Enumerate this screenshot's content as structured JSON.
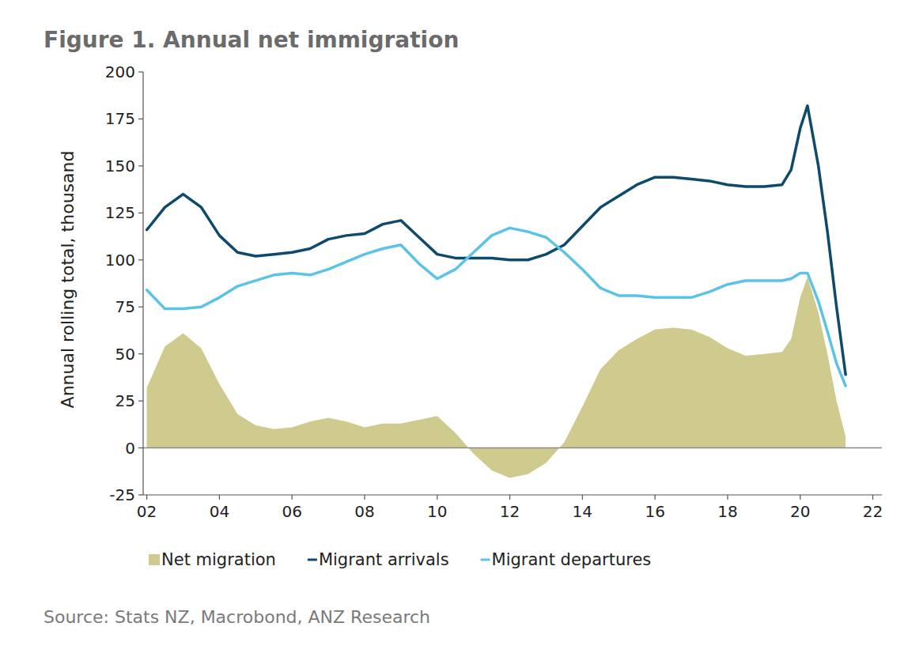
{
  "chart_data": {
    "type": "line",
    "title": "Figure 1. Annual net immigration",
    "y_label": "Annual rolling total, thousand",
    "source": "Source: Stats NZ, Macrobond, ANZ Research",
    "x": [
      2002,
      2002.5,
      2003,
      2003.5,
      2004,
      2004.5,
      2005,
      2005.5,
      2006,
      2006.5,
      2007,
      2007.5,
      2008,
      2008.5,
      2009,
      2009.5,
      2010,
      2010.5,
      2011,
      2011.5,
      2012,
      2012.5,
      2013,
      2013.5,
      2014,
      2014.5,
      2015,
      2015.5,
      2016,
      2016.5,
      2017,
      2017.5,
      2018,
      2018.5,
      2019,
      2019.5,
      2019.75,
      2020,
      2020.2,
      2020.5,
      2020.75,
      2021,
      2021.25
    ],
    "series": [
      {
        "name": "Net migration",
        "type": "area",
        "color": "#cfca8d",
        "values": [
          32,
          54,
          61,
          53,
          34,
          18,
          12,
          10,
          11,
          14,
          16,
          14,
          11,
          13,
          13,
          15,
          17,
          8,
          -3,
          -12,
          -16,
          -14,
          -8,
          3,
          22,
          42,
          52,
          58,
          63,
          64,
          63,
          59,
          53,
          49,
          50,
          51,
          58,
          80,
          91,
          72,
          50,
          25,
          6
        ]
      },
      {
        "name": "Migrant arrivals",
        "type": "line",
        "color": "#0d4a6b",
        "values": [
          116,
          128,
          135,
          128,
          113,
          104,
          102,
          103,
          104,
          106,
          111,
          113,
          114,
          119,
          121,
          112,
          103,
          101,
          101,
          101,
          100,
          100,
          103,
          108,
          118,
          128,
          134,
          140,
          144,
          144,
          143,
          142,
          140,
          139,
          139,
          140,
          148,
          170,
          182,
          150,
          115,
          75,
          39
        ]
      },
      {
        "name": "Migrant departures",
        "type": "line",
        "color": "#5bc3e8",
        "values": [
          84,
          74,
          74,
          75,
          80,
          86,
          89,
          92,
          93,
          92,
          95,
          99,
          103,
          106,
          108,
          98,
          90,
          95,
          104,
          113,
          117,
          115,
          112,
          104,
          95,
          85,
          81,
          81,
          80,
          80,
          80,
          83,
          87,
          89,
          89,
          89,
          90,
          93,
          93,
          78,
          62,
          45,
          33
        ]
      }
    ],
    "xlim": [
      2001.9,
      2022.25
    ],
    "xticks": [
      {
        "value": 2002,
        "label": "02"
      },
      {
        "value": 2004,
        "label": "04"
      },
      {
        "value": 2006,
        "label": "06"
      },
      {
        "value": 2008,
        "label": "08"
      },
      {
        "value": 2010,
        "label": "10"
      },
      {
        "value": 2012,
        "label": "12"
      },
      {
        "value": 2014,
        "label": "14"
      },
      {
        "value": 2016,
        "label": "16"
      },
      {
        "value": 2018,
        "label": "18"
      },
      {
        "value": 2020,
        "label": "20"
      },
      {
        "value": 2022,
        "label": "22"
      }
    ],
    "ylim": [
      -25,
      200
    ],
    "yticks": [
      -25,
      0,
      25,
      50,
      75,
      100,
      125,
      150,
      175,
      200
    ],
    "grid": false,
    "legend": "bottom"
  }
}
